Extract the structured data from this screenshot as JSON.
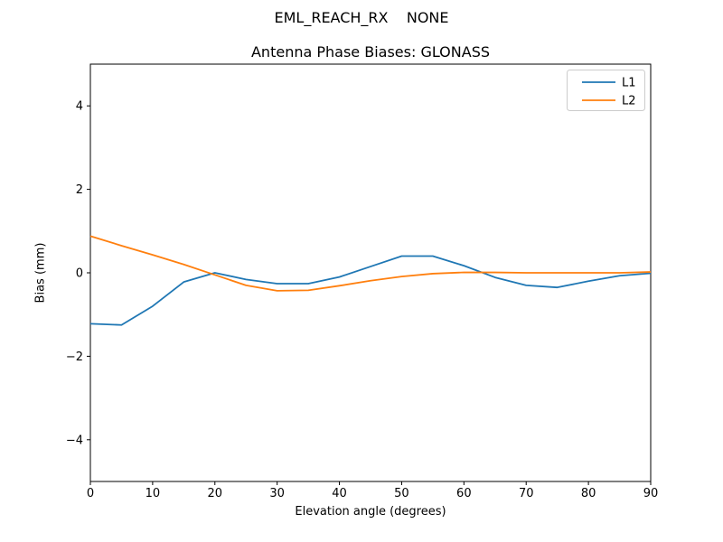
{
  "figure": {
    "suptitle": "EML_REACH_RX    NONE"
  },
  "chart_data": {
    "type": "line",
    "title": "Antenna Phase Biases: GLONASS",
    "xlabel": "Elevation angle (degrees)",
    "ylabel": "Bias (mm)",
    "xlim": [
      0,
      90
    ],
    "ylim": [
      -5,
      5
    ],
    "xtick_values": [
      0,
      10,
      20,
      30,
      40,
      50,
      60,
      70,
      80,
      90
    ],
    "xtick_labels": [
      "0",
      "10",
      "20",
      "30",
      "40",
      "50",
      "60",
      "70",
      "80",
      "90"
    ],
    "ytick_values": [
      -4,
      -2,
      0,
      2,
      4
    ],
    "ytick_labels": [
      "−4",
      "−2",
      "0",
      "2",
      "4"
    ],
    "grid": false,
    "legend": {
      "position": "upper right",
      "border_color": "#cccccc",
      "background": "#ffffff"
    },
    "x": [
      0,
      5,
      10,
      15,
      20,
      25,
      30,
      35,
      40,
      45,
      50,
      55,
      60,
      65,
      70,
      75,
      80,
      85,
      90
    ],
    "series": [
      {
        "name": "L1",
        "color": "#1f77b4",
        "values": [
          -1.22,
          -1.25,
          -0.8,
          -0.22,
          0.0,
          -0.16,
          -0.26,
          -0.26,
          -0.1,
          0.15,
          0.4,
          0.4,
          0.17,
          -0.11,
          -0.3,
          -0.35,
          -0.2,
          -0.07,
          -0.01
        ]
      },
      {
        "name": "L2",
        "color": "#ff7f0e",
        "values": [
          0.88,
          0.65,
          0.43,
          0.2,
          -0.05,
          -0.3,
          -0.43,
          -0.42,
          -0.31,
          -0.19,
          -0.09,
          -0.02,
          0.01,
          0.01,
          0.0,
          0.0,
          0.0,
          0.0,
          0.02
        ]
      }
    ]
  }
}
